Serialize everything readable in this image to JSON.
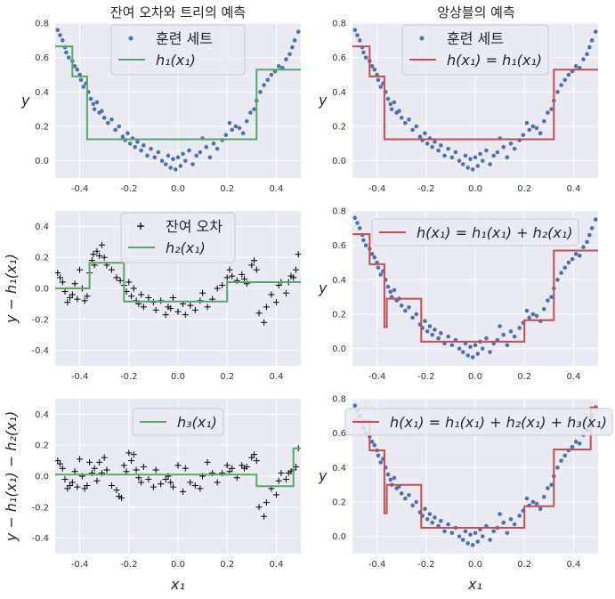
{
  "figure": {
    "titles": [
      "잔여 오차와 트리의 예측",
      "앙상블의 예측"
    ]
  },
  "chart_data": [
    {
      "id": "p1",
      "type": "scatter+step",
      "title": "잔여 오차와 트리의 예측",
      "xlim": [
        -0.5,
        0.5
      ],
      "ylim": [
        -0.1,
        0.8
      ],
      "xticks": [
        -0.4,
        -0.2,
        0.0,
        0.2,
        0.4
      ],
      "xtick_labels": [
        "-0.4",
        "-0.2",
        "0.0",
        "0.2",
        "0.4"
      ],
      "yticks": [
        0.0,
        0.2,
        0.4,
        0.6,
        0.8
      ],
      "ytick_labels": [
        "0.0",
        "0.2",
        "0.4",
        "0.6",
        "0.8"
      ],
      "ylabel": "y",
      "xlabel": "",
      "scatter": {
        "name": "훈련 세트",
        "color": "#4c72b0",
        "marker": "dot",
        "data": "y"
      },
      "line": {
        "name": "h₁(x₁)",
        "color": "#55a868",
        "x": [
          -0.5,
          -0.43,
          -0.43,
          -0.37,
          -0.37,
          0.32,
          0.32,
          0.5
        ],
        "y": [
          0.665,
          0.665,
          0.49,
          0.49,
          0.125,
          0.125,
          0.53,
          0.53
        ]
      },
      "legend": {
        "position": "top-center",
        "entries": [
          {
            "marker": "dot",
            "label": "훈련 세트"
          },
          {
            "marker": "line",
            "label": "h₁(x₁)"
          }
        ]
      }
    },
    {
      "id": "p2",
      "type": "scatter+step",
      "title": "앙상블의 예측",
      "xlim": [
        -0.5,
        0.5
      ],
      "ylim": [
        -0.1,
        0.8
      ],
      "xticks": [
        -0.4,
        -0.2,
        0.0,
        0.2,
        0.4
      ],
      "xtick_labels": [
        "-0.4",
        "-0.2",
        "0.0",
        "0.2",
        "0.4"
      ],
      "yticks": [
        0.0,
        0.2,
        0.4,
        0.6,
        0.8
      ],
      "ytick_labels": [
        "0.0",
        "0.2",
        "0.4",
        "0.6",
        "0.8"
      ],
      "ylabel": "y",
      "xlabel": "",
      "scatter": {
        "name": "훈련 세트",
        "color": "#4c72b0",
        "marker": "dot",
        "data": "y"
      },
      "line": {
        "name": "h(x₁) = h₁(x₁)",
        "color": "#c44e52",
        "x": [
          -0.5,
          -0.43,
          -0.43,
          -0.37,
          -0.37,
          0.32,
          0.32,
          0.5
        ],
        "y": [
          0.665,
          0.665,
          0.49,
          0.49,
          0.125,
          0.125,
          0.53,
          0.53
        ]
      },
      "legend": {
        "position": "top-center",
        "entries": [
          {
            "marker": "dot",
            "label": "훈련 세트"
          },
          {
            "marker": "line",
            "label": "h(x₁) = h₁(x₁)"
          }
        ]
      }
    },
    {
      "id": "p3",
      "type": "scatter+step",
      "xlim": [
        -0.5,
        0.5
      ],
      "ylim": [
        -0.5,
        0.5
      ],
      "xticks": [
        -0.4,
        -0.2,
        0.0,
        0.2,
        0.4
      ],
      "xtick_labels": [
        "-0.4",
        "-0.2",
        "0.0",
        "0.2",
        "0.4"
      ],
      "yticks": [
        -0.4,
        -0.2,
        0.0,
        0.2,
        0.4
      ],
      "ytick_labels": [
        "-0.4",
        "-0.2",
        "0.0",
        "0.2",
        "0.4"
      ],
      "ylabel": "y − h₁(x₁)",
      "xlabel": "",
      "scatter": {
        "name": "잔여 오차",
        "color": "#000000",
        "marker": "plus",
        "data": "r1"
      },
      "line": {
        "name": "h₂(x₁)",
        "color": "#55a868",
        "x": [
          -0.5,
          -0.36,
          -0.36,
          -0.22,
          -0.22,
          0.2,
          0.2,
          0.5
        ],
        "y": [
          0.0,
          0.0,
          0.165,
          0.165,
          -0.085,
          -0.085,
          0.04,
          0.04
        ]
      },
      "legend": {
        "position": "top-center",
        "entries": [
          {
            "marker": "plus",
            "label": "잔여 오차"
          },
          {
            "marker": "line",
            "label": "h₂(x₁)"
          }
        ]
      }
    },
    {
      "id": "p4",
      "type": "scatter+step",
      "xlim": [
        -0.5,
        0.5
      ],
      "ylim": [
        -0.1,
        0.8
      ],
      "xticks": [
        -0.4,
        -0.2,
        0.0,
        0.2,
        0.4
      ],
      "xtick_labels": [
        "-0.4",
        "-0.2",
        "0.0",
        "0.2",
        "0.4"
      ],
      "yticks": [
        0.0,
        0.2,
        0.4,
        0.6,
        0.8
      ],
      "ytick_labels": [
        "0.0",
        "0.2",
        "0.4",
        "0.6",
        "0.8"
      ],
      "ylabel": "y",
      "xlabel": "",
      "scatter": {
        "name": "훈련 세트",
        "color": "#4c72b0",
        "marker": "dot",
        "data": "y"
      },
      "line": {
        "name": "h(x₁) = h₁(x₁) + h₂(x₁)",
        "color": "#c44e52",
        "x": [
          -0.5,
          -0.43,
          -0.43,
          -0.37,
          -0.37,
          -0.36,
          -0.36,
          -0.22,
          -0.22,
          0.2,
          0.2,
          0.32,
          0.32,
          0.5
        ],
        "y": [
          0.665,
          0.665,
          0.49,
          0.49,
          0.125,
          0.125,
          0.29,
          0.29,
          0.04,
          0.04,
          0.165,
          0.165,
          0.57,
          0.57
        ]
      },
      "legend": {
        "position": "top-center",
        "entries": [
          {
            "marker": "line",
            "label": "h(x₁) = h₁(x₁) + h₂(x₁)"
          }
        ]
      }
    },
    {
      "id": "p5",
      "type": "scatter+step",
      "xlim": [
        -0.5,
        0.5
      ],
      "ylim": [
        -0.5,
        0.5
      ],
      "xticks": [
        -0.4,
        -0.2,
        0.0,
        0.2,
        0.4
      ],
      "xtick_labels": [
        "-0.4",
        "-0.2",
        "0.0",
        "0.2",
        "0.4"
      ],
      "yticks": [
        -0.4,
        -0.2,
        0.0,
        0.2,
        0.4
      ],
      "ytick_labels": [
        "-0.4",
        "-0.2",
        "0.0",
        "0.2",
        "0.4"
      ],
      "ylabel": "y − h₁(x₁) − h₂(x₁)",
      "xlabel": "x₁",
      "scatter": {
        "name": "잔여 오차",
        "color": "#000000",
        "marker": "plus",
        "data": "r2"
      },
      "line": {
        "name": "h₃(x₁)",
        "color": "#55a868",
        "x": [
          -0.5,
          0.32,
          0.32,
          0.47,
          0.47,
          0.5
        ],
        "y": [
          0.01,
          0.01,
          -0.065,
          -0.065,
          0.18,
          0.18
        ]
      },
      "legend": {
        "position": "top-center",
        "entries": [
          {
            "marker": "line",
            "label": "h₃(x₁)"
          }
        ]
      }
    },
    {
      "id": "p6",
      "type": "scatter+step",
      "xlim": [
        -0.5,
        0.5
      ],
      "ylim": [
        -0.1,
        0.8
      ],
      "xticks": [
        -0.4,
        -0.2,
        0.0,
        0.2,
        0.4
      ],
      "xtick_labels": [
        "-0.4",
        "-0.2",
        "0.0",
        "0.2",
        "0.4"
      ],
      "yticks": [
        0.0,
        0.2,
        0.4,
        0.6,
        0.8
      ],
      "ytick_labels": [
        "0.0",
        "0.2",
        "0.4",
        "0.6",
        "0.8"
      ],
      "ylabel": "y",
      "xlabel": "x₁",
      "scatter": {
        "name": "훈련 세트",
        "color": "#4c72b0",
        "marker": "dot",
        "data": "y"
      },
      "line": {
        "name": "h(x₁) = h₁(x₁) + h₂(x₁) + h₃(x₁)",
        "color": "#c44e52",
        "x": [
          -0.5,
          -0.43,
          -0.43,
          -0.37,
          -0.37,
          -0.36,
          -0.36,
          -0.22,
          -0.22,
          0.2,
          0.2,
          0.32,
          0.32,
          0.47,
          0.47,
          0.5
        ],
        "y": [
          0.675,
          0.675,
          0.5,
          0.5,
          0.135,
          0.135,
          0.3,
          0.3,
          0.05,
          0.05,
          0.175,
          0.175,
          0.505,
          0.505,
          0.75,
          0.75
        ]
      },
      "legend": {
        "position": "top-center",
        "entries": [
          {
            "marker": "line",
            "label": "h(x₁) = h₁(x₁) + h₂(x₁) + h₃(x₁)"
          }
        ]
      }
    }
  ],
  "training_set": {
    "x": [
      -0.49,
      -0.48,
      -0.47,
      -0.46,
      -0.455,
      -0.445,
      -0.43,
      -0.42,
      -0.41,
      -0.4,
      -0.395,
      -0.385,
      -0.375,
      -0.365,
      -0.355,
      -0.345,
      -0.34,
      -0.33,
      -0.32,
      -0.31,
      -0.3,
      -0.285,
      -0.27,
      -0.255,
      -0.24,
      -0.225,
      -0.215,
      -0.205,
      -0.195,
      -0.185,
      -0.175,
      -0.165,
      -0.15,
      -0.14,
      -0.125,
      -0.11,
      -0.095,
      -0.08,
      -0.065,
      -0.05,
      -0.04,
      -0.03,
      -0.02,
      -0.01,
      0.0,
      0.01,
      0.02,
      0.03,
      0.045,
      0.06,
      0.075,
      0.09,
      0.1,
      0.115,
      0.13,
      0.145,
      0.16,
      0.18,
      0.195,
      0.21,
      0.22,
      0.235,
      0.25,
      0.265,
      0.28,
      0.295,
      0.31,
      0.32,
      0.335,
      0.35,
      0.365,
      0.38,
      0.395,
      0.41,
      0.425,
      0.44,
      0.455,
      0.465,
      0.475,
      0.49
    ],
    "y": [
      0.76,
      0.73,
      0.7,
      0.66,
      0.63,
      0.6,
      0.58,
      0.55,
      0.53,
      0.5,
      0.47,
      0.43,
      0.45,
      0.4,
      0.36,
      0.33,
      0.3,
      0.34,
      0.28,
      0.29,
      0.25,
      0.22,
      0.24,
      0.18,
      0.2,
      0.14,
      0.12,
      0.16,
      0.1,
      0.13,
      0.08,
      0.11,
      0.06,
      0.09,
      0.03,
      0.07,
      0.02,
      0.05,
      0.0,
      -0.02,
      0.03,
      -0.04,
      0.01,
      -0.05,
      0.02,
      -0.03,
      0.04,
      0.0,
      0.06,
      -0.02,
      0.03,
      0.05,
      0.13,
      0.08,
      0.02,
      0.1,
      0.07,
      0.12,
      0.15,
      0.22,
      0.18,
      0.2,
      0.19,
      0.16,
      0.23,
      0.28,
      0.3,
      0.35,
      0.4,
      0.44,
      0.47,
      0.5,
      0.52,
      0.55,
      0.54,
      0.59,
      0.62,
      0.66,
      0.7,
      0.75
    ]
  },
  "residual1": {
    "x": [
      -0.49,
      -0.48,
      -0.47,
      -0.46,
      -0.45,
      -0.44,
      -0.43,
      -0.42,
      -0.41,
      -0.4,
      -0.39,
      -0.38,
      -0.37,
      -0.36,
      -0.35,
      -0.345,
      -0.34,
      -0.33,
      -0.32,
      -0.31,
      -0.3,
      -0.29,
      -0.27,
      -0.25,
      -0.235,
      -0.22,
      -0.21,
      -0.2,
      -0.19,
      -0.18,
      -0.17,
      -0.16,
      -0.15,
      -0.14,
      -0.12,
      -0.1,
      -0.09,
      -0.07,
      -0.05,
      -0.04,
      -0.03,
      -0.02,
      0.0,
      0.02,
      0.03,
      0.05,
      0.07,
      0.09,
      0.1,
      0.12,
      0.14,
      0.16,
      0.18,
      0.2,
      0.21,
      0.22,
      0.24,
      0.26,
      0.27,
      0.28,
      0.3,
      0.31,
      0.32,
      0.33,
      0.35,
      0.36,
      0.38,
      0.4,
      0.41,
      0.42,
      0.44,
      0.45,
      0.46,
      0.47,
      0.48,
      0.49
    ],
    "y": [
      0.1,
      0.07,
      0.04,
      -0.02,
      -0.09,
      -0.06,
      -0.04,
      0.03,
      -0.07,
      0.12,
      0.0,
      -0.08,
      -0.05,
      0.1,
      0.18,
      0.22,
      0.15,
      0.24,
      0.21,
      0.28,
      0.2,
      0.15,
      0.12,
      0.07,
      0.05,
      0.02,
      -0.02,
      0.04,
      -0.05,
      0.0,
      -0.08,
      -0.1,
      -0.04,
      -0.12,
      -0.06,
      -0.09,
      -0.14,
      -0.08,
      -0.17,
      -0.12,
      -0.13,
      -0.06,
      -0.15,
      -0.1,
      -0.17,
      -0.11,
      -0.14,
      -0.08,
      -0.03,
      -0.12,
      -0.07,
      0.0,
      0.02,
      0.07,
      0.12,
      0.08,
      0.05,
      0.09,
      0.06,
      0.03,
      0.15,
      0.18,
      0.12,
      -0.16,
      -0.22,
      -0.12,
      -0.04,
      -0.09,
      0.02,
      0.04,
      -0.03,
      0.04,
      0.08,
      0.07,
      0.12,
      0.22
    ]
  },
  "residual2": {
    "x": [
      -0.49,
      -0.48,
      -0.47,
      -0.46,
      -0.45,
      -0.44,
      -0.43,
      -0.42,
      -0.41,
      -0.4,
      -0.39,
      -0.38,
      -0.37,
      -0.36,
      -0.35,
      -0.34,
      -0.33,
      -0.32,
      -0.31,
      -0.3,
      -0.29,
      -0.27,
      -0.25,
      -0.24,
      -0.23,
      -0.22,
      -0.21,
      -0.2,
      -0.19,
      -0.18,
      -0.17,
      -0.16,
      -0.15,
      -0.14,
      -0.12,
      -0.1,
      -0.09,
      -0.07,
      -0.05,
      -0.04,
      -0.03,
      -0.02,
      0.0,
      0.02,
      0.03,
      0.05,
      0.07,
      0.09,
      0.1,
      0.12,
      0.14,
      0.16,
      0.18,
      0.2,
      0.21,
      0.22,
      0.24,
      0.26,
      0.27,
      0.28,
      0.3,
      0.31,
      0.32,
      0.33,
      0.35,
      0.36,
      0.38,
      0.4,
      0.41,
      0.42,
      0.44,
      0.45,
      0.46,
      0.47,
      0.48,
      0.49
    ],
    "y": [
      0.1,
      0.08,
      0.05,
      -0.02,
      -0.08,
      -0.06,
      -0.04,
      0.03,
      -0.07,
      0.11,
      0.0,
      -0.08,
      -0.06,
      0.09,
      0.02,
      0.05,
      -0.03,
      0.09,
      0.02,
      0.12,
      0.04,
      -0.06,
      -0.09,
      -0.13,
      -0.14,
      0.07,
      0.03,
      0.15,
      0.1,
      0.14,
      0.04,
      -0.01,
      -0.04,
      0.06,
      -0.02,
      -0.07,
      0.04,
      -0.05,
      -0.02,
      0.0,
      -0.04,
      -0.07,
      0.07,
      -0.1,
      0.05,
      -0.04,
      -0.06,
      -0.08,
      0.0,
      0.09,
      0.02,
      -0.04,
      0.02,
      0.07,
      0.03,
      0.05,
      -0.01,
      0.07,
      0.05,
      0.06,
      0.12,
      0.14,
      0.1,
      -0.2,
      -0.26,
      -0.17,
      -0.08,
      -0.12,
      -0.03,
      0.02,
      -0.02,
      0.02,
      0.03,
      0.04,
      0.06,
      0.18
    ]
  }
}
